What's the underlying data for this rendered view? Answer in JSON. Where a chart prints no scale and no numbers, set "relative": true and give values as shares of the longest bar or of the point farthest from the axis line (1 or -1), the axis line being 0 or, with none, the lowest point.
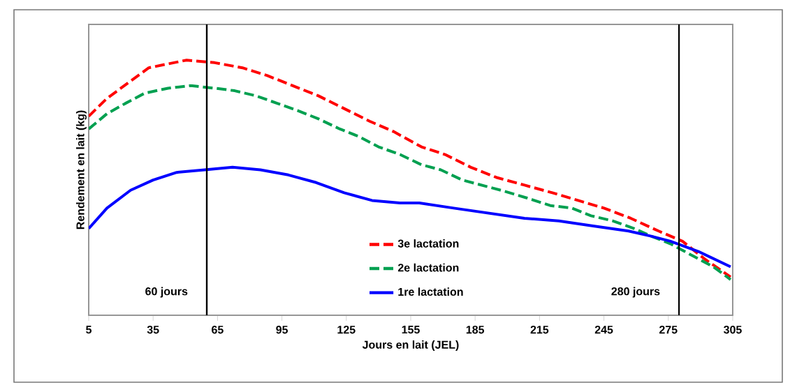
{
  "chart_data": {
    "type": "line",
    "relative": true,
    "xlabel": "Jours en lait (JEL)",
    "ylabel": "Rendement en lait (kg)",
    "xlim": [
      5,
      305
    ],
    "xticks": [
      5,
      35,
      65,
      95,
      125,
      155,
      185,
      215,
      245,
      275,
      305
    ],
    "grid": false,
    "legend": "bottom",
    "ref_lines": [
      {
        "axis": "x",
        "value": 60,
        "label": "60 jours",
        "color": "#000000"
      },
      {
        "axis": "x",
        "value": 280,
        "label": "280 jours",
        "color": "#000000"
      }
    ],
    "series": [
      {
        "name": "3e lactation",
        "color": "#ff0000",
        "line_style": "dashed",
        "x": [
          5,
          13.5,
          33,
          50.6,
          63.6,
          76.6,
          88,
          100,
          112,
          124,
          136,
          147,
          160,
          171,
          183,
          195,
          208,
          221,
          233,
          245,
          257.5,
          270.5,
          281.6,
          292,
          304
        ],
        "values": [
          0.78,
          0.85,
          0.97,
          1.0,
          0.99,
          0.97,
          0.94,
          0.9,
          0.86,
          0.81,
          0.76,
          0.72,
          0.66,
          0.63,
          0.58,
          0.54,
          0.51,
          0.48,
          0.45,
          0.42,
          0.38,
          0.33,
          0.29,
          0.22,
          0.15
        ]
      },
      {
        "name": "2e lactation",
        "color": "#00a050",
        "line_style": "dashed",
        "x": [
          5,
          13.5,
          22,
          31,
          42,
          52.5,
          63.6,
          73,
          83,
          93,
          103,
          112,
          122,
          131,
          140,
          150,
          160,
          169,
          179,
          188,
          197,
          209,
          220,
          230,
          239,
          249,
          259,
          267,
          276,
          287,
          296,
          304
        ],
        "values": [
          0.73,
          0.79,
          0.83,
          0.87,
          0.89,
          0.9,
          0.89,
          0.88,
          0.86,
          0.83,
          0.8,
          0.77,
          0.73,
          0.7,
          0.66,
          0.63,
          0.59,
          0.57,
          0.53,
          0.51,
          0.49,
          0.46,
          0.43,
          0.42,
          0.39,
          0.37,
          0.34,
          0.31,
          0.28,
          0.23,
          0.19,
          0.14
        ]
      },
      {
        "name": "1re lactation",
        "color": "#0000ff",
        "line_style": "solid",
        "x": [
          5,
          13.5,
          24.5,
          35,
          46,
          59,
          72,
          85,
          98,
          111,
          124,
          137,
          150,
          159,
          175,
          191.5,
          208,
          224,
          240,
          256.5,
          267,
          276,
          289,
          304
        ],
        "values": [
          0.34,
          0.42,
          0.49,
          0.53,
          0.56,
          0.57,
          0.58,
          0.57,
          0.55,
          0.52,
          0.48,
          0.45,
          0.44,
          0.44,
          0.42,
          0.4,
          0.38,
          0.37,
          0.35,
          0.33,
          0.31,
          0.29,
          0.25,
          0.19
        ]
      }
    ]
  }
}
